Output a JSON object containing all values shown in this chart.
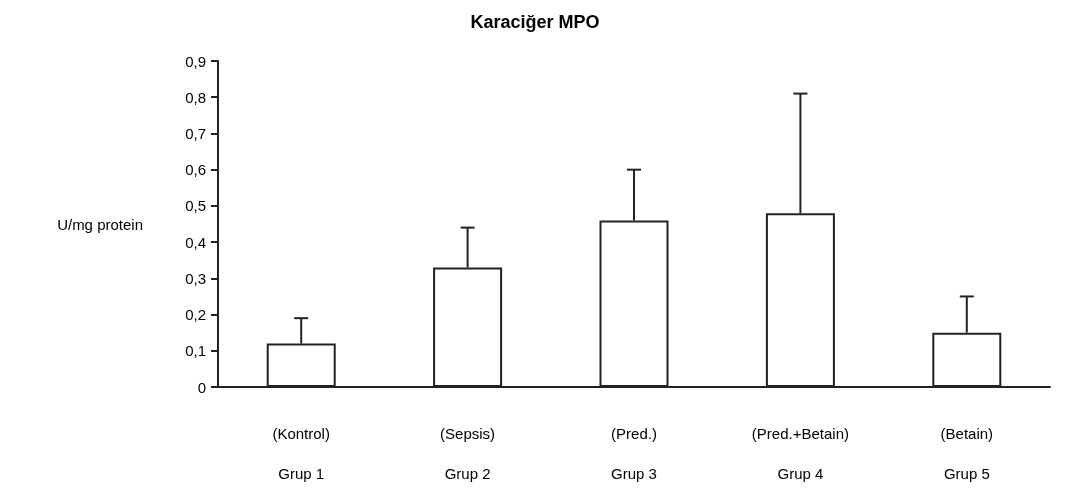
{
  "chart_data": {
    "type": "bar",
    "title": "Karaciğer MPO",
    "ylabel": "U/mg protein",
    "categories": [
      "(Kontrol)\nGrup 1",
      "(Sepsis)\nGrup 2",
      "(Pred.)\nGrup 3",
      "(Pred.+Betain)\nGrup 4",
      "(Betain)\nGrup 5"
    ],
    "values": [
      0.12,
      0.33,
      0.46,
      0.48,
      0.15
    ],
    "errors": [
      [
        0.12,
        0.19
      ],
      [
        0.33,
        0.44
      ],
      [
        0.46,
        0.6
      ],
      [
        0.48,
        0.81
      ],
      [
        0.15,
        0.25
      ]
    ],
    "color": "#ffffff",
    "ylim": [
      0,
      0.9
    ],
    "yticks": [
      0,
      {
        "value": 0.1,
        "label": "0,1"
      },
      {
        "value": 0.2,
        "label": "0,2"
      },
      {
        "value": 0.3,
        "label": "0,3"
      },
      {
        "value": 0.4,
        "label": "0,4"
      },
      {
        "value": 0.5,
        "label": "0,5"
      },
      {
        "value": 0.6,
        "label": "0,6"
      },
      {
        "value": 0.7,
        "label": "0,7"
      },
      {
        "value": 0.8,
        "label": "0,8"
      },
      {
        "value": 0.9,
        "label": "0,9"
      }
    ]
  }
}
